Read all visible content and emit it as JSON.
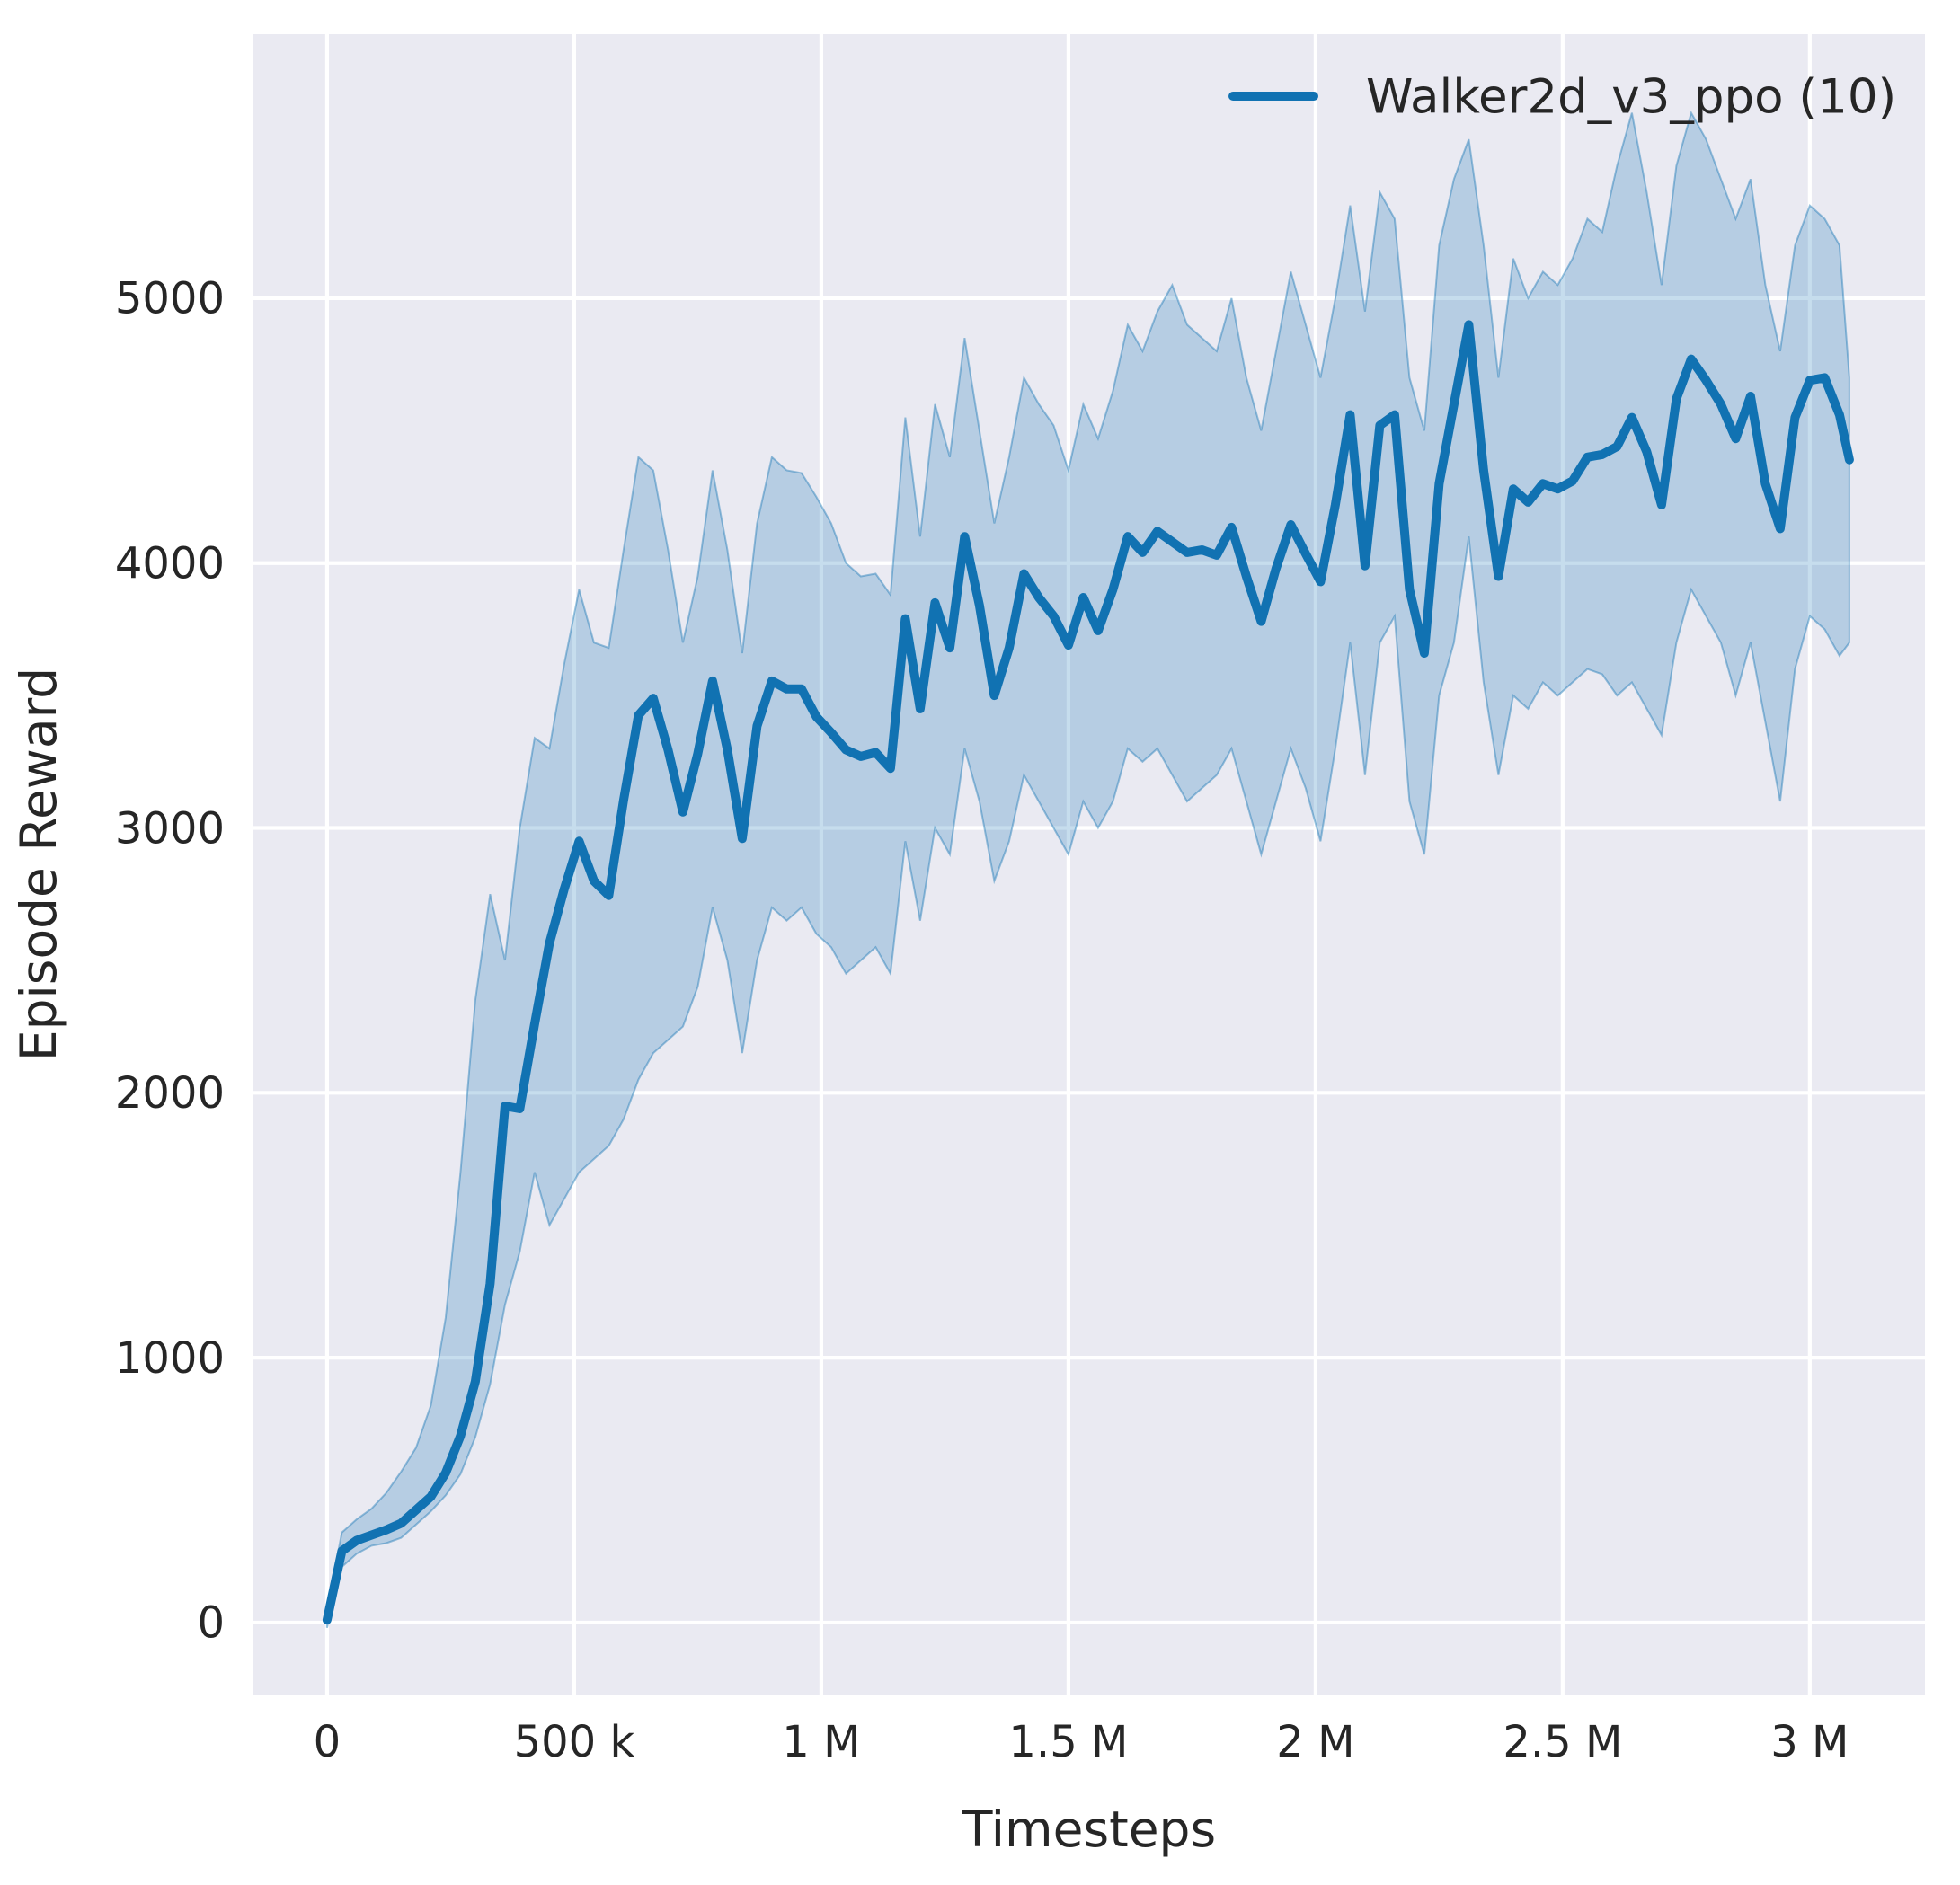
{
  "figure": {
    "background": "#ffffff",
    "plot_background": "#eaeaf2",
    "grid_color": "#ffffff",
    "text_color": "#262626"
  },
  "legend": {
    "label": "Walker2d_v3_ppo (10)",
    "swatch_color": "#1172b2"
  },
  "axes": {
    "x": {
      "label": "Timesteps",
      "lim": [
        -149000,
        3233000
      ],
      "ticks": [
        {
          "value": 0,
          "label": "0"
        },
        {
          "value": 500000,
          "label": "500 k"
        },
        {
          "value": 1000000,
          "label": "1 M"
        },
        {
          "value": 1500000,
          "label": "1.5 M"
        },
        {
          "value": 2000000,
          "label": "2 M"
        },
        {
          "value": 2500000,
          "label": "2.5 M"
        },
        {
          "value": 3000000,
          "label": "3 M"
        }
      ]
    },
    "y": {
      "label": "Episode Reward",
      "lim": [
        -275,
        5997
      ],
      "ticks": [
        {
          "value": 0,
          "label": "0"
        },
        {
          "value": 1000,
          "label": "1000"
        },
        {
          "value": 2000,
          "label": "2000"
        },
        {
          "value": 3000,
          "label": "3000"
        },
        {
          "value": 4000,
          "label": "4000"
        },
        {
          "value": 5000,
          "label": "5000"
        }
      ]
    }
  },
  "chart_data": {
    "type": "line",
    "title": "",
    "xlabel": "Timesteps",
    "ylabel": "Episode Reward",
    "grid": true,
    "legend_position": "upper right",
    "xlim": [
      -149000,
      3233000
    ],
    "ylim": [
      -275,
      5997
    ],
    "x_unit": "timesteps (values below given in thousands of timesteps)",
    "series": [
      {
        "name": "Walker2d_v3_ppo (10)",
        "color": "#1172b2",
        "band_fill_opacity": 0.24,
        "x_k": [
          0,
          30,
          60,
          90,
          120,
          150,
          180,
          210,
          240,
          270,
          300,
          330,
          360,
          390,
          420,
          450,
          480,
          510,
          540,
          570,
          600,
          630,
          660,
          690,
          720,
          750,
          780,
          810,
          840,
          870,
          900,
          930,
          960,
          990,
          1020,
          1050,
          1080,
          1110,
          1140,
          1170,
          1200,
          1230,
          1260,
          1290,
          1320,
          1350,
          1380,
          1410,
          1440,
          1470,
          1500,
          1530,
          1560,
          1590,
          1620,
          1650,
          1680,
          1710,
          1740,
          1770,
          1800,
          1830,
          1860,
          1890,
          1920,
          1950,
          1980,
          2010,
          2040,
          2070,
          2100,
          2130,
          2160,
          2190,
          2220,
          2250,
          2280,
          2310,
          2340,
          2370,
          2400,
          2430,
          2460,
          2490,
          2520,
          2550,
          2580,
          2610,
          2640,
          2670,
          2700,
          2730,
          2760,
          2790,
          2820,
          2850,
          2880,
          2910,
          2940,
          2970,
          3000,
          3030,
          3060,
          3080
        ],
        "mean": [
          10,
          270,
          310,
          330,
          350,
          375,
          425,
          475,
          565,
          705,
          910,
          1280,
          1950,
          1940,
          2260,
          2565,
          2770,
          2950,
          2800,
          2745,
          3105,
          3425,
          3490,
          3295,
          3060,
          3280,
          3555,
          3295,
          2960,
          3385,
          3555,
          3525,
          3525,
          3420,
          3360,
          3295,
          3270,
          3285,
          3225,
          3790,
          3450,
          3850,
          3680,
          4100,
          3840,
          3500,
          3680,
          3960,
          3870,
          3800,
          3690,
          3870,
          3745,
          3900,
          4100,
          4040,
          4120,
          4080,
          4040,
          4050,
          4030,
          4135,
          3950,
          3780,
          3980,
          4145,
          4035,
          3930,
          4220,
          4560,
          3990,
          4520,
          4560,
          3900,
          3660,
          4300,
          4600,
          4900,
          4350,
          3950,
          4280,
          4230,
          4300,
          4280,
          4310,
          4400,
          4410,
          4440,
          4550,
          4420,
          4220,
          4620,
          4770,
          4690,
          4600,
          4470,
          4630,
          4300,
          4130,
          4550,
          4690,
          4700,
          4560,
          4390
        ],
        "band_hi": [
          50,
          340,
          390,
          430,
          490,
          570,
          660,
          820,
          1150,
          1700,
          2350,
          2750,
          2500,
          3000,
          3340,
          3300,
          3620,
          3900,
          3700,
          3680,
          4050,
          4400,
          4350,
          4050,
          3700,
          3950,
          4350,
          4050,
          3660,
          4150,
          4400,
          4350,
          4340,
          4250,
          4150,
          4000,
          3950,
          3960,
          3880,
          4550,
          4100,
          4600,
          4400,
          4850,
          4500,
          4150,
          4400,
          4700,
          4600,
          4520,
          4350,
          4600,
          4470,
          4650,
          4900,
          4800,
          4950,
          5050,
          4900,
          4850,
          4800,
          5000,
          4700,
          4500,
          4800,
          5100,
          4900,
          4700,
          5000,
          5350,
          4950,
          5400,
          5300,
          4700,
          4500,
          5200,
          5450,
          5600,
          5200,
          4700,
          5150,
          5000,
          5100,
          5050,
          5150,
          5300,
          5250,
          5500,
          5700,
          5400,
          5050,
          5500,
          5700,
          5600,
          5450,
          5300,
          5450,
          5050,
          4800,
          5200,
          5350,
          5300,
          5200,
          4700
        ],
        "band_lo": [
          -20,
          210,
          260,
          290,
          300,
          320,
          370,
          420,
          480,
          560,
          700,
          900,
          1200,
          1400,
          1700,
          1500,
          1600,
          1700,
          1750,
          1800,
          1900,
          2050,
          2150,
          2200,
          2250,
          2400,
          2700,
          2500,
          2150,
          2500,
          2700,
          2650,
          2700,
          2600,
          2550,
          2450,
          2500,
          2550,
          2450,
          2950,
          2650,
          3000,
          2900,
          3300,
          3100,
          2800,
          2950,
          3200,
          3100,
          3000,
          2900,
          3100,
          3000,
          3100,
          3300,
          3250,
          3300,
          3200,
          3100,
          3150,
          3200,
          3300,
          3100,
          2900,
          3100,
          3300,
          3150,
          2950,
          3300,
          3700,
          3200,
          3700,
          3800,
          3100,
          2900,
          3500,
          3700,
          4100,
          3550,
          3200,
          3500,
          3450,
          3550,
          3500,
          3550,
          3600,
          3580,
          3500,
          3550,
          3450,
          3350,
          3700,
          3900,
          3800,
          3700,
          3500,
          3700,
          3400,
          3100,
          3600,
          3800,
          3750,
          3650,
          3700
        ]
      }
    ]
  }
}
